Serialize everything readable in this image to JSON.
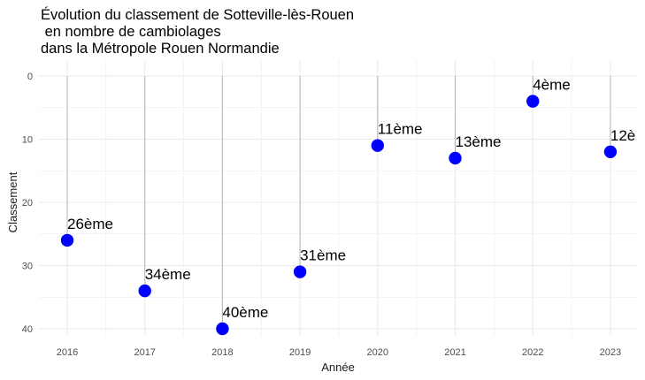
{
  "chart_data": {
    "type": "scatter",
    "title_lines": [
      "Évolution du classement de Sotteville-lès-Rouen",
      " en nombre de cambiolages",
      "dans la Métropole Rouen Normandie"
    ],
    "xlabel": "Année",
    "ylabel": "Classement",
    "x_ticks": [
      "2016",
      "2017",
      "2018",
      "2019",
      "2020",
      "2021",
      "2022",
      "2023"
    ],
    "y_ticks": [
      "0",
      "10",
      "20",
      "30",
      "40"
    ],
    "ylim": [
      0,
      40
    ],
    "y_reversed": true,
    "grid": true,
    "points": [
      {
        "x": "2016",
        "y": 26,
        "label": "26ème"
      },
      {
        "x": "2017",
        "y": 34,
        "label": "34ème"
      },
      {
        "x": "2018",
        "y": 40,
        "label": "40ème"
      },
      {
        "x": "2019",
        "y": 31,
        "label": "31ème"
      },
      {
        "x": "2020",
        "y": 11,
        "label": "11ème"
      },
      {
        "x": "2021",
        "y": 13,
        "label": "13ème"
      },
      {
        "x": "2022",
        "y": 4,
        "label": "4ème"
      },
      {
        "x": "2023",
        "y": 12,
        "label": "12è"
      }
    ],
    "colors": {
      "point": "#0000ff",
      "segment": "#b3b3b3",
      "grid": "#ebebeb"
    }
  }
}
